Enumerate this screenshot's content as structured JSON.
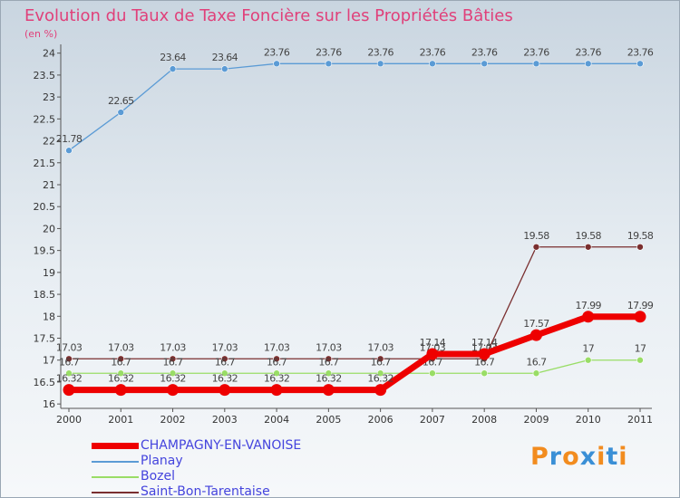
{
  "chart_data": {
    "type": "line",
    "title": "Evolution du Taux de Taxe Foncière sur les Propriétés Bâties",
    "ylabel": "(en %)",
    "ylim": [
      15.9,
      24.2
    ],
    "y_ticks": [
      "16",
      "16.5",
      "17",
      "17.5",
      "18",
      "18.5",
      "19",
      "19.5",
      "20",
      "20.5",
      "21",
      "21.5",
      "22",
      "22.5",
      "23",
      "23.5",
      "24"
    ],
    "categories": [
      "2000",
      "2001",
      "2002",
      "2003",
      "2004",
      "2005",
      "2006",
      "2007",
      "2008",
      "2009",
      "2010",
      "2011"
    ],
    "series": [
      {
        "name": "Planay",
        "color": "#5b9bd5",
        "values": [
          21.78,
          22.65,
          23.64,
          23.64,
          23.76,
          23.76,
          23.76,
          23.76,
          23.76,
          23.76,
          23.76,
          23.76
        ],
        "labels": [
          "21.78",
          "22.65",
          "23.64",
          "23.64",
          "23.76",
          "23.76",
          "23.76",
          "23.76",
          "23.76",
          "23.76",
          "23.76",
          "23.76"
        ]
      },
      {
        "name": "Saint-Bon-Tarentaise",
        "color": "#7a2f2f",
        "values": [
          17.03,
          17.03,
          17.03,
          17.03,
          17.03,
          17.03,
          17.03,
          17.03,
          17.03,
          19.58,
          19.58,
          19.58
        ],
        "labels": [
          "17.03",
          "17.03",
          "17.03",
          "17.03",
          "17.03",
          "17.03",
          "17.03",
          "17.03",
          "17.03",
          "19.58",
          "19.58",
          "19.58"
        ]
      },
      {
        "name": "Bozel",
        "color": "#99dd66",
        "values": [
          16.7,
          16.7,
          16.7,
          16.7,
          16.7,
          16.7,
          16.7,
          16.7,
          16.7,
          16.7,
          17,
          17
        ],
        "labels": [
          "16.7",
          "16.7",
          "16.7",
          "16.7",
          "16.7",
          "16.7",
          "16.7",
          "16.7",
          "16.7",
          "16.7",
          "17",
          "17"
        ]
      },
      {
        "name": "CHAMPAGNY-EN-VANOISE",
        "color": "#ee0000",
        "values": [
          16.32,
          16.32,
          16.32,
          16.32,
          16.32,
          16.32,
          16.32,
          17.14,
          17.14,
          17.57,
          17.99,
          17.99
        ],
        "labels": [
          "16.32",
          "16.32",
          "16.32",
          "16.32",
          "16.32",
          "16.32",
          "16.32",
          "17.14",
          "17.14",
          "17.57",
          "17.99",
          "17.99"
        ]
      }
    ]
  },
  "legend": [
    {
      "label": "CHAMPAGNY-EN-VANOISE",
      "color": "#ee0000",
      "text_color": "#4444dd"
    },
    {
      "label": "Planay",
      "color": "#5b9bd5",
      "text_color": "#4444dd"
    },
    {
      "label": "Bozel",
      "color": "#99dd66",
      "text_color": "#4444dd"
    },
    {
      "label": "Saint-Bon-Tarentaise",
      "color": "#7a2f2f",
      "text_color": "#4444dd"
    }
  ],
  "logo": {
    "text": "Proxiti",
    "letter_colors": [
      "#f28c1f",
      "#3a8fd6",
      "#f28c1f",
      "#3a8fd6",
      "#f28c1f",
      "#3a8fd6",
      "#f28c1f"
    ]
  }
}
